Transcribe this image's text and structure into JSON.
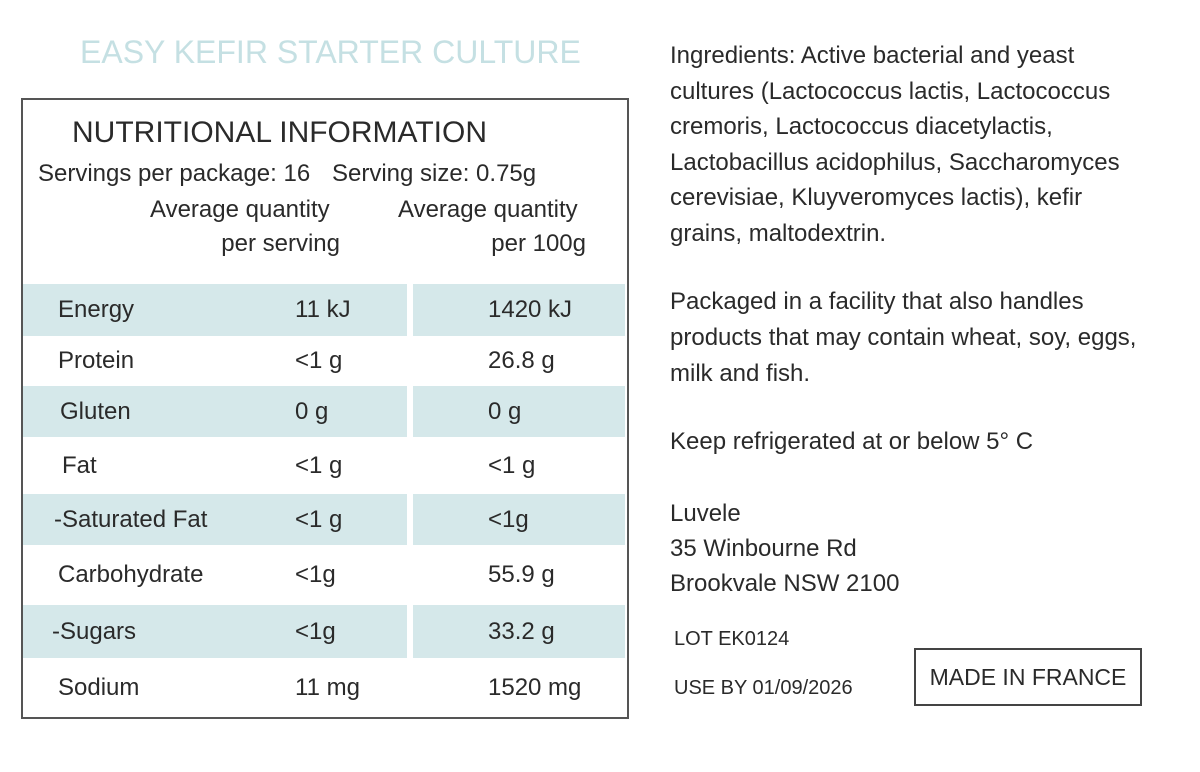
{
  "title": "EASY KEFIR STARTER CULTURE",
  "nutrition": {
    "heading": "NUTRITIONAL INFORMATION",
    "servings_per_package": "Servings per package: 16",
    "serving_size": "Serving size: 0.75g",
    "col1_header": [
      "Average quantity",
      "per serving"
    ],
    "col2_header": [
      "Average quantity",
      "per 100g"
    ],
    "rows": [
      [
        "Energy",
        "11 kJ",
        "1420 kJ"
      ],
      [
        "Protein",
        "<1 g",
        "26.8 g"
      ],
      [
        "Gluten",
        "0 g",
        "0 g"
      ],
      [
        "Fat",
        "<1 g",
        "<1 g"
      ],
      [
        "-Saturated Fat",
        "<1 g",
        "<1g"
      ],
      [
        "Carbohydrate",
        "<1g",
        "55.9 g"
      ],
      [
        "-Sugars",
        "<1g",
        "33.2 g"
      ],
      [
        "Sodium",
        "11 mg",
        "1520 mg"
      ]
    ]
  },
  "ingredients": [
    "Ingredients: Active bacterial and yeast",
    "cultures (Lactococcus lactis, Lactococcus",
    "cremoris, Lactococcus diacetylactis,",
    "Lactobacillus acidophilus, Saccharomyces",
    "cerevisiae, Kluyveromyces lactis), kefir",
    "grains, maltodextrin."
  ],
  "allergen": [
    "Packaged in a facility that also handles",
    "products that may contain wheat, soy, eggs,",
    "milk and fish."
  ],
  "storage": "Keep refrigerated at or below 5° C",
  "address": [
    "Luvele",
    "35 Winbourne Rd",
    "Brookvale NSW 2100"
  ],
  "lot": "LOT EK0124",
  "use_by": "USE BY  01/09/2026",
  "origin": "MADE IN FRANCE"
}
